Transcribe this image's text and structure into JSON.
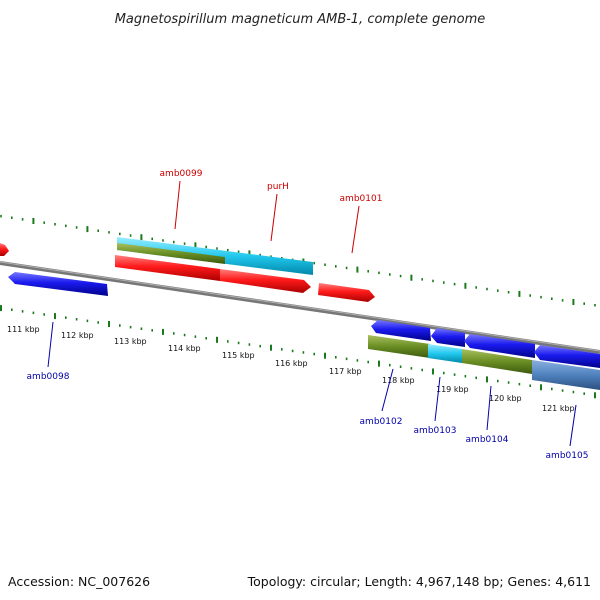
{
  "title": "Magnetospirillum magneticum AMB-1, complete genome",
  "footer": {
    "accession": "Accession: NC_007626",
    "summary": "Topology: circular; Length: 4,967,148 bp; Genes: 4,611"
  },
  "colors": {
    "backbone": "#888888",
    "ticks": "#1a7a1a",
    "forward_label": "#cc0000",
    "reverse_label": "#0000aa",
    "red_gene": "#ff1a1a",
    "blue_gene": "#1a1aee",
    "cyan_feature": "#33ccee",
    "olive_feature": "#6b8e23",
    "steelblue_feature": "#4f81bd"
  },
  "scale": {
    "unit": "kbp",
    "labeled_ticks": [
      "111 kbp",
      "112 kbp",
      "113 kbp",
      "114 kbp",
      "115 kbp",
      "116 kbp",
      "117 kbp",
      "118 kbp",
      "119 kbp",
      "120 kbp",
      "121 kbp"
    ]
  },
  "gene_labels": {
    "forward": [
      "amb0099",
      "purH",
      "amb0101"
    ],
    "reverse": [
      "amb0098",
      "amb0102",
      "amb0103",
      "amb0104",
      "amb0105"
    ]
  }
}
